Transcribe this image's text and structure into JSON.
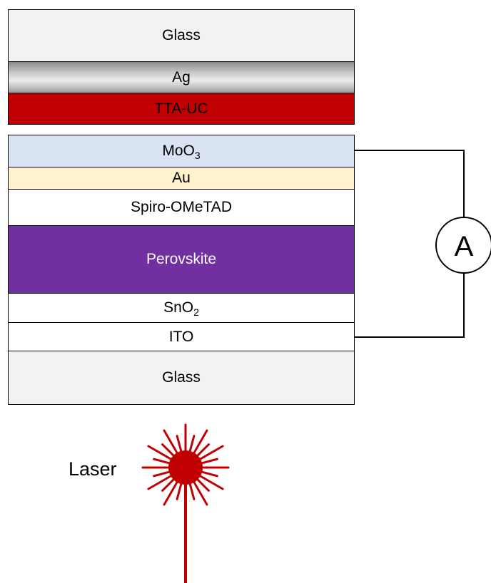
{
  "layers": {
    "glass_top": "Glass",
    "ag": "Ag",
    "tta_uc": "TTA-UC",
    "moo3_base": "MoO",
    "moo3_sub": "3",
    "au": "Au",
    "spiro": "Spiro-OMeTAD",
    "perovskite": "Perovskite",
    "sno2_base": "SnO",
    "sno2_sub": "2",
    "ito": "ITO",
    "glass_bottom": "Glass"
  },
  "ammeter": {
    "label": "A"
  },
  "laser": {
    "label": "Laser",
    "color": "#c00000"
  },
  "colors": {
    "glass": "#f2f2f2",
    "tta_uc": "#c00000",
    "moo3": "#dae3f3",
    "au": "#fff2cc",
    "perovskite": "#7030a0"
  }
}
